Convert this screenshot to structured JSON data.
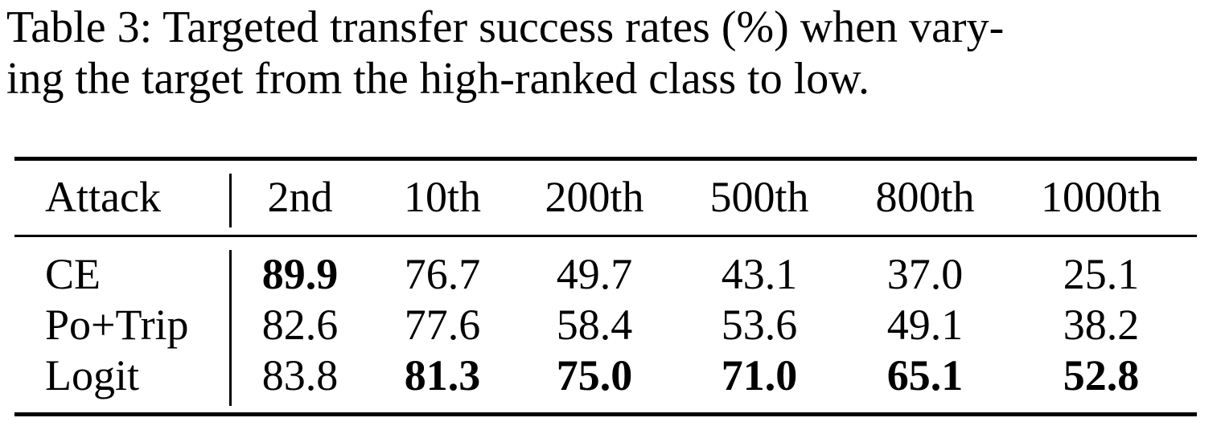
{
  "caption": {
    "line1": "Table 3: Targeted transfer success rates (%) when vary-",
    "line2": "ing the target from the high-ranked class to low."
  },
  "table": {
    "headers": [
      "Attack",
      "2nd",
      "10th",
      "200th",
      "500th",
      "800th",
      "1000th"
    ],
    "rows": [
      {
        "attack": "CE",
        "values": [
          "89.9",
          "76.7",
          "49.7",
          "43.1",
          "37.0",
          "25.1"
        ]
      },
      {
        "attack": "Po+Trip",
        "values": [
          "82.6",
          "77.6",
          "58.4",
          "53.6",
          "49.1",
          "38.2"
        ]
      },
      {
        "attack": "Logit",
        "values": [
          "83.8",
          "81.3",
          "75.0",
          "71.0",
          "65.1",
          "52.8"
        ]
      }
    ],
    "bold": [
      [
        "true",
        "false",
        "false",
        "false",
        "false",
        "false"
      ],
      [
        "false",
        "false",
        "false",
        "false",
        "false",
        "false"
      ],
      [
        "false",
        "true",
        "true",
        "true",
        "true",
        "true"
      ]
    ]
  }
}
